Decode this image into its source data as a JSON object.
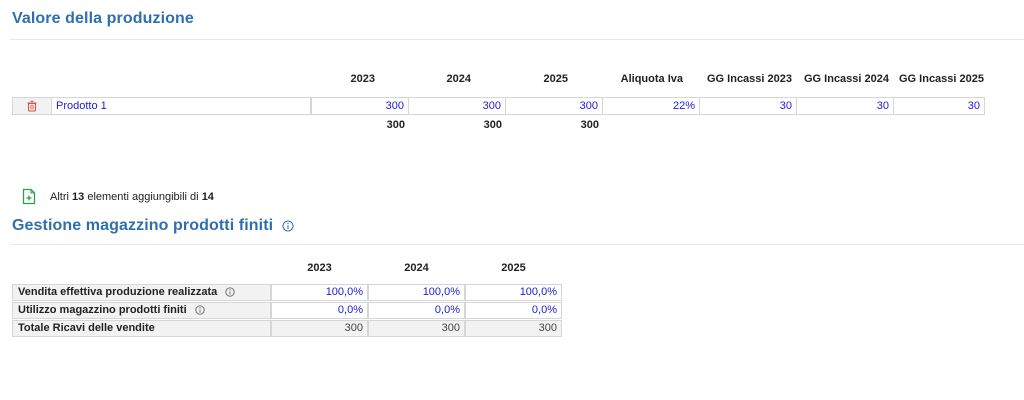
{
  "produzione": {
    "title": "Valore della produzione",
    "headers": [
      "2023",
      "2024",
      "2025",
      "Aliquota Iva",
      "GG Incassi 2023",
      "GG Incassi 2024",
      "GG Incassi 2025"
    ],
    "row": {
      "name": "Prodotto 1",
      "values": [
        "300",
        "300",
        "300",
        "22%",
        "30",
        "30",
        "30"
      ]
    },
    "totals": [
      "300",
      "300",
      "300"
    ]
  },
  "add_more": {
    "prefix": "Altri",
    "count": "13",
    "middle": "elementi aggiungibili di",
    "total": "14"
  },
  "magazzino": {
    "title": "Gestione magazzino prodotti finiti",
    "headers": [
      "2023",
      "2024",
      "2025"
    ],
    "rows": [
      {
        "label": "Vendita effettiva produzione realizzata",
        "values": [
          "100,0%",
          "100,0%",
          "100,0%"
        ]
      },
      {
        "label": "Utilizzo magazzino prodotti finiti",
        "values": [
          "0,0%",
          "0,0%",
          "0,0%"
        ]
      },
      {
        "label": "Totale Ricavi delle vendite",
        "values": [
          "300",
          "300",
          "300"
        ]
      }
    ]
  },
  "colors": {
    "title": "#2f6fb0",
    "input_text": "#1c1cd6",
    "add_icon": "#2e9e4f",
    "trash_icon": "#d9534f"
  },
  "icons": {
    "delete": "trash-icon",
    "add": "file-add-icon",
    "info": "info-icon"
  }
}
